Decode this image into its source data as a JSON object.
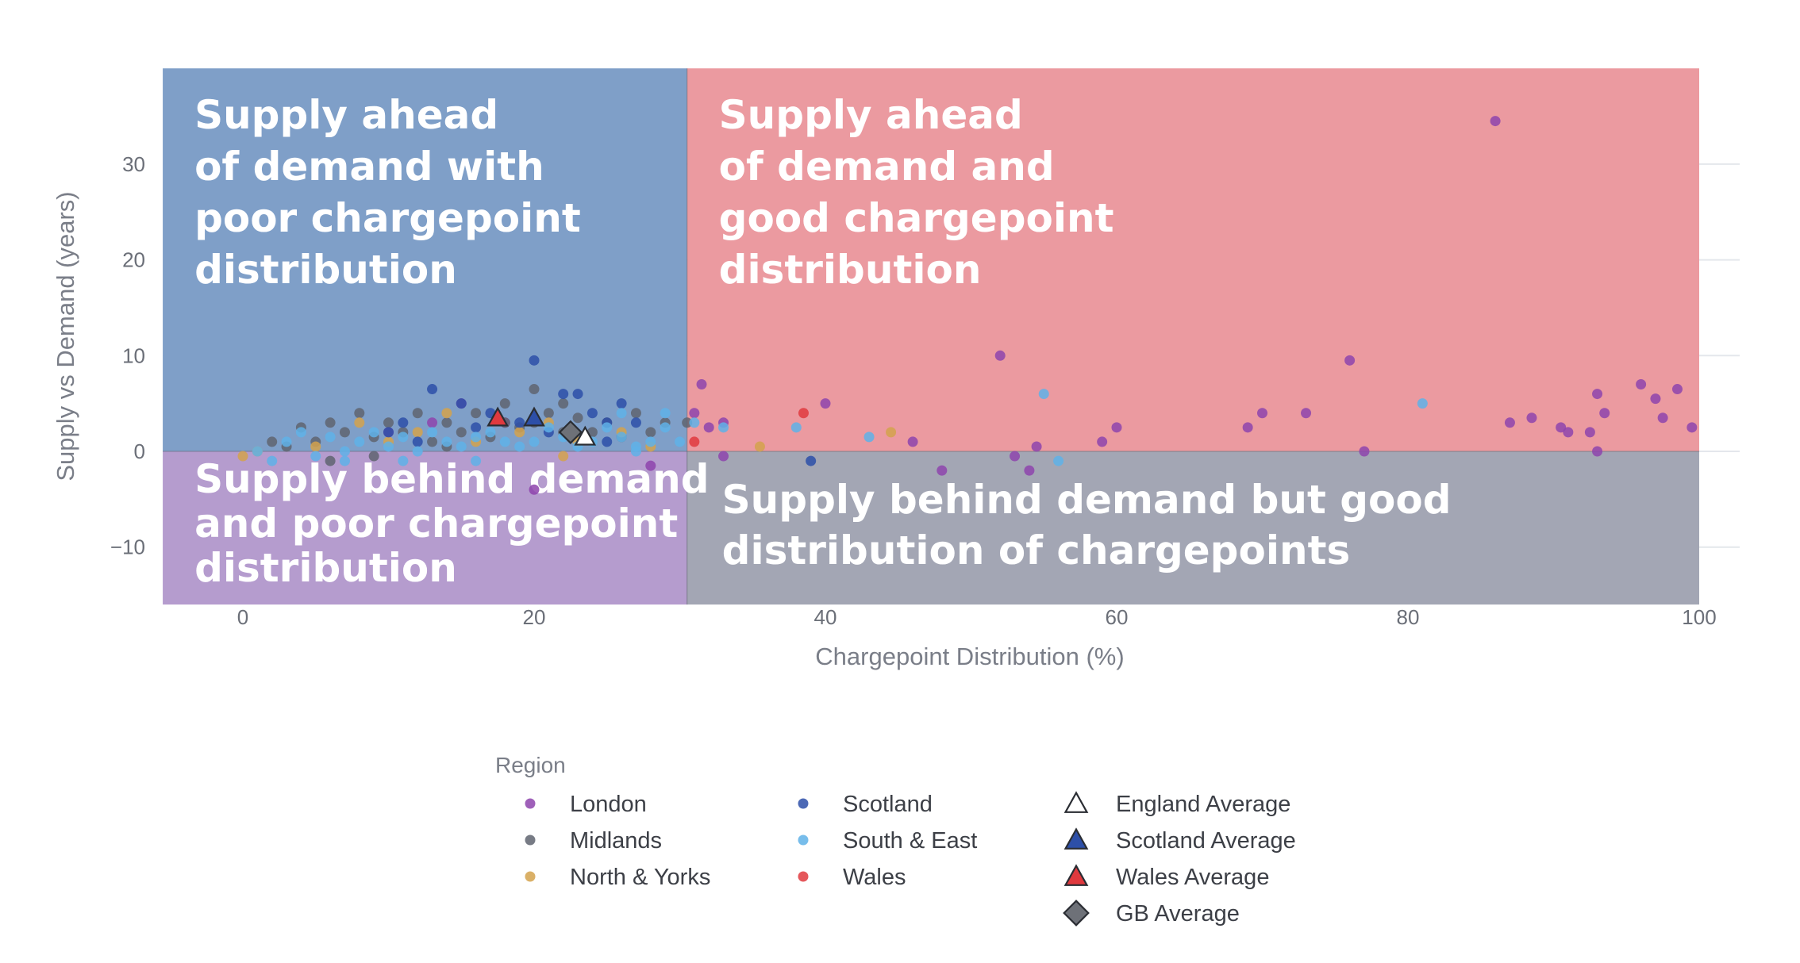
{
  "chart_data": {
    "type": "scatter",
    "xlabel": "Chargepoint Distribution (%)",
    "ylabel": "Supply vs Demand (years)",
    "xlim": [
      -5.5,
      105
    ],
    "ylim": [
      -16,
      40
    ],
    "x_ticks": [
      0,
      20,
      40,
      60,
      80,
      100
    ],
    "x_tick_labels": [
      "0",
      "20",
      "40",
      "60",
      "80",
      "100"
    ],
    "y_ticks": [
      -10,
      0,
      10,
      20,
      30
    ],
    "y_tick_labels": [
      "−10",
      "0",
      "10",
      "20",
      "30"
    ],
    "grid": true,
    "quadrant_split": {
      "x": 30.5,
      "y": 0,
      "x_extent": [
        -5.5,
        100
      ],
      "y_extent": [
        -16,
        40
      ]
    },
    "quadrants": [
      {
        "name": "top-left",
        "label": [
          "Supply ahead",
          "of demand with",
          "poor chargepoint",
          "distribution"
        ],
        "color": "#7f9fc8"
      },
      {
        "name": "top-right",
        "label": [
          "Supply ahead",
          "of demand and",
          "good chargepoint",
          "distribution"
        ],
        "color": "#eb9aa0"
      },
      {
        "name": "bottom-left",
        "label": [
          "Supply behind demand",
          "and poor chargepoint",
          "distribution"
        ],
        "color": "#b59cce"
      },
      {
        "name": "bottom-right",
        "label": [
          "Supply behind demand but good",
          "distribution of chargepoints"
        ],
        "color": "#a3a6b4"
      }
    ],
    "legend": {
      "title": "Region",
      "position": "bottom-center"
    },
    "series": [
      {
        "name": "London",
        "color": "#8e44ad",
        "marker": "circle",
        "points": [
          [
            31.5,
            7
          ],
          [
            33,
            3
          ],
          [
            40,
            5
          ],
          [
            52,
            10
          ],
          [
            53,
            -0.5
          ],
          [
            54,
            -2
          ],
          [
            46,
            1
          ],
          [
            48,
            -2
          ],
          [
            59,
            1
          ],
          [
            60,
            2.5
          ],
          [
            69,
            2.5
          ],
          [
            70,
            4
          ],
          [
            73,
            4
          ],
          [
            76,
            9.5
          ],
          [
            77,
            0
          ],
          [
            86,
            34.5
          ],
          [
            87,
            3
          ],
          [
            88.5,
            3.5
          ],
          [
            90.5,
            2.5
          ],
          [
            91,
            2
          ],
          [
            92.5,
            2
          ],
          [
            93,
            6
          ],
          [
            93.5,
            4
          ],
          [
            93,
            0
          ],
          [
            96,
            7
          ],
          [
            97,
            5.5
          ],
          [
            97.5,
            3.5
          ],
          [
            98.5,
            6.5
          ],
          [
            99.5,
            2.5
          ],
          [
            32,
            2.5
          ],
          [
            33,
            -0.5
          ],
          [
            54.5,
            0.5
          ],
          [
            31,
            4
          ],
          [
            28,
            -1.5
          ],
          [
            20,
            -4
          ],
          [
            15,
            5
          ],
          [
            13,
            3
          ],
          [
            10,
            2
          ],
          [
            18,
            3
          ]
        ]
      },
      {
        "name": "Midlands",
        "color": "#5f6470",
        "marker": "circle",
        "points": [
          [
            2,
            1
          ],
          [
            3,
            0.5
          ],
          [
            4,
            2.5
          ],
          [
            5,
            1
          ],
          [
            6,
            3
          ],
          [
            7,
            2
          ],
          [
            8,
            4
          ],
          [
            9,
            1.5
          ],
          [
            10,
            3
          ],
          [
            11,
            2
          ],
          [
            12,
            4
          ],
          [
            13,
            1
          ],
          [
            14,
            3
          ],
          [
            15,
            2
          ],
          [
            16,
            4
          ],
          [
            17,
            1.5
          ],
          [
            18,
            3
          ],
          [
            19,
            2.5
          ],
          [
            20,
            6.5
          ],
          [
            21,
            4
          ],
          [
            22,
            2
          ],
          [
            23,
            3.5
          ],
          [
            24,
            2
          ],
          [
            25,
            3
          ],
          [
            26,
            1.5
          ],
          [
            27,
            4
          ],
          [
            28,
            2
          ],
          [
            29,
            3
          ],
          [
            22,
            5
          ],
          [
            20,
            3
          ],
          [
            18,
            5
          ],
          [
            14,
            0.5
          ],
          [
            9,
            -0.5
          ],
          [
            6,
            -1
          ],
          [
            30.5,
            3
          ]
        ]
      },
      {
        "name": "North & Yorks",
        "color": "#d4a24c",
        "marker": "circle",
        "points": [
          [
            0,
            -0.5
          ],
          [
            1,
            0
          ],
          [
            5,
            0.5
          ],
          [
            8,
            3
          ],
          [
            10,
            1
          ],
          [
            12,
            2
          ],
          [
            14,
            4
          ],
          [
            16,
            1
          ],
          [
            19,
            2
          ],
          [
            21,
            3
          ],
          [
            23,
            1
          ],
          [
            26,
            2
          ],
          [
            28,
            0.5
          ],
          [
            35.5,
            0.5
          ],
          [
            44.5,
            2
          ],
          [
            22,
            -0.5
          ]
        ]
      },
      {
        "name": "Scotland",
        "color": "#2d4fa8",
        "marker": "circle",
        "points": [
          [
            20,
            9.5
          ],
          [
            13,
            6.5
          ],
          [
            22,
            6
          ],
          [
            23,
            6
          ],
          [
            15,
            5
          ],
          [
            17,
            4
          ],
          [
            19,
            3
          ],
          [
            21,
            2
          ],
          [
            24,
            4
          ],
          [
            25,
            3
          ],
          [
            26,
            5
          ],
          [
            27,
            3
          ],
          [
            10,
            2
          ],
          [
            12,
            1
          ],
          [
            25,
            1
          ],
          [
            39,
            -1
          ],
          [
            11,
            3
          ],
          [
            16,
            2.5
          ]
        ]
      },
      {
        "name": "South & East",
        "color": "#5fb2e8",
        "marker": "circle",
        "points": [
          [
            1,
            0
          ],
          [
            2,
            -1
          ],
          [
            3,
            1
          ],
          [
            4,
            2
          ],
          [
            5,
            -0.5
          ],
          [
            6,
            1.5
          ],
          [
            7,
            0
          ],
          [
            8,
            1
          ],
          [
            9,
            2
          ],
          [
            10,
            0.5
          ],
          [
            11,
            1.5
          ],
          [
            12,
            0
          ],
          [
            13,
            2
          ],
          [
            14,
            1
          ],
          [
            15,
            0.5
          ],
          [
            16,
            1.5
          ],
          [
            17,
            2
          ],
          [
            18,
            1
          ],
          [
            19,
            0.5
          ],
          [
            20,
            1
          ],
          [
            21,
            2.5
          ],
          [
            22,
            1.5
          ],
          [
            23,
            0.5
          ],
          [
            24,
            1
          ],
          [
            25,
            2.5
          ],
          [
            26,
            1.5
          ],
          [
            27,
            0.5
          ],
          [
            28,
            1
          ],
          [
            29,
            2.5
          ],
          [
            30,
            1
          ],
          [
            31,
            3
          ],
          [
            33,
            2.5
          ],
          [
            38,
            2.5
          ],
          [
            43,
            1.5
          ],
          [
            56,
            -1
          ],
          [
            55,
            6
          ],
          [
            81,
            5
          ],
          [
            7,
            -1
          ],
          [
            11,
            -1
          ],
          [
            16,
            -1
          ],
          [
            27,
            0
          ],
          [
            29,
            4
          ],
          [
            26,
            4
          ]
        ]
      },
      {
        "name": "Wales",
        "color": "#e0393e",
        "marker": "circle",
        "points": [
          [
            38.5,
            4
          ],
          [
            31,
            1
          ]
        ]
      },
      {
        "name": "England Average",
        "color": "#ffffff",
        "marker": "triangle",
        "points": [
          [
            23.5,
            1.5
          ]
        ]
      },
      {
        "name": "Scotland Average",
        "color": "#2d4fa8",
        "marker": "triangle",
        "points": [
          [
            20,
            3.5
          ]
        ]
      },
      {
        "name": "Wales Average",
        "color": "#e0393e",
        "marker": "triangle",
        "points": [
          [
            17.5,
            3.5
          ]
        ]
      },
      {
        "name": "GB Average",
        "color": "#6e7178",
        "marker": "diamond",
        "points": [
          [
            22.5,
            2
          ]
        ]
      }
    ]
  }
}
